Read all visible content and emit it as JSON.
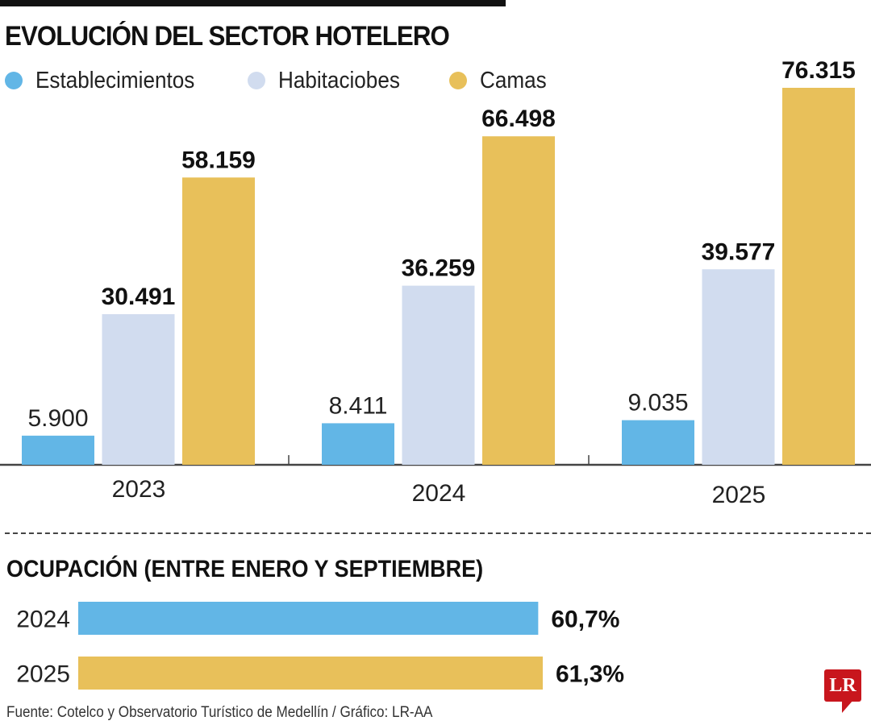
{
  "chart_data": [
    {
      "type": "bar",
      "title": "EVOLUCIÓN DEL SECTOR HOTELERO",
      "categories": [
        "2023",
        "2024",
        "2025"
      ],
      "series": [
        {
          "name": "Establecimientos",
          "color": "#62b6e6",
          "values": [
            5900,
            8411,
            9035
          ],
          "labels": [
            "5.900",
            "8.411",
            "9.035"
          ]
        },
        {
          "name": "Habitaciobes",
          "color": "#d1dcef",
          "values": [
            30491,
            36259,
            39577
          ],
          "labels": [
            "30.491",
            "36.259",
            "39.577"
          ]
        },
        {
          "name": "Camas",
          "color": "#e8c05a",
          "values": [
            58159,
            66498,
            76315
          ],
          "labels": [
            "58.159",
            "66.498",
            "76.315"
          ]
        }
      ],
      "xlabel": "",
      "ylabel": "",
      "ylim": [
        0,
        76315
      ],
      "grid": false,
      "legend": "top-left"
    },
    {
      "type": "bar",
      "orientation": "horizontal",
      "title": "OCUPACIÓN (ENTRE ENERO Y SEPTIEMBRE)",
      "categories": [
        "2024",
        "2025"
      ],
      "values": [
        60.7,
        61.3
      ],
      "labels": [
        "60,7%",
        "61,3%"
      ],
      "colors": [
        "#62b6e6",
        "#e8c05a"
      ],
      "unit": "%"
    }
  ],
  "source": "Fuente: Cotelco y Observatorio Turístico de Medellín / Gráfico: LR-AA",
  "logo": "LR"
}
